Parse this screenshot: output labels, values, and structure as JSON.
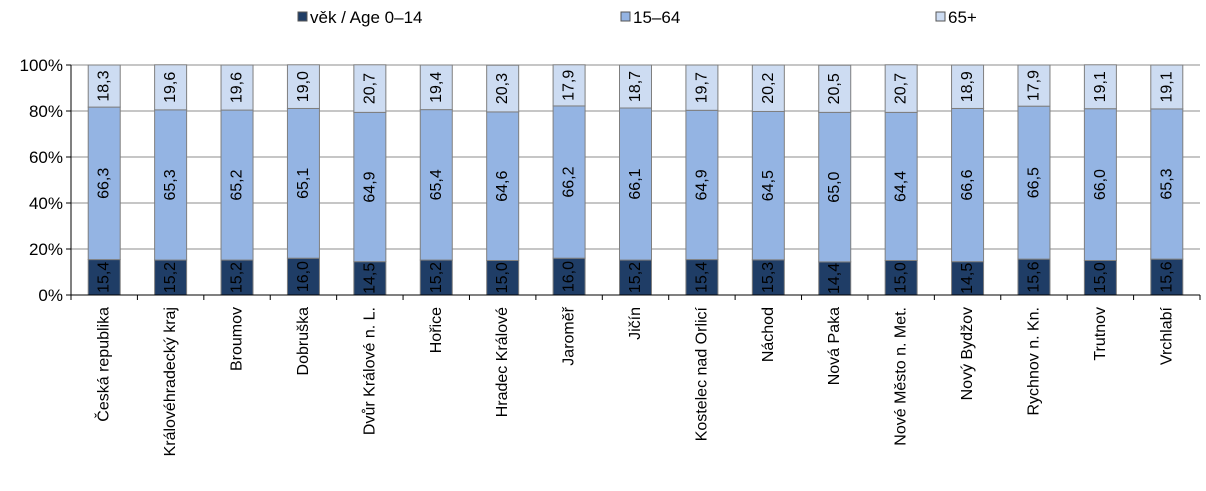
{
  "chart_data": {
    "type": "bar",
    "stacked": true,
    "categories": [
      "Česká republika",
      "Královéhradecký kraj",
      "Broumov",
      "Dobruška",
      "Dvůr Králové n. L.",
      "Hořice",
      "Hradec Králové",
      "Jaroměř",
      "Jičín",
      "Kostelec nad Orlicí",
      "Náchod",
      "Nová Paka",
      "Nové Město n. Met.",
      "Nový Bydžov",
      "Rychnov n. Kn.",
      "Trutnov",
      "Vrchlabí"
    ],
    "series": [
      {
        "name": "věk / Age 0–14",
        "color": "#1f3d66",
        "values": [
          15.4,
          15.2,
          15.2,
          16.0,
          14.5,
          15.2,
          15.0,
          16.0,
          15.2,
          15.4,
          15.3,
          14.4,
          15.0,
          14.5,
          15.6,
          15.0,
          15.6
        ]
      },
      {
        "name": "15–64",
        "color": "#94b4e3",
        "values": [
          66.3,
          65.3,
          65.2,
          65.1,
          64.9,
          65.4,
          64.6,
          66.2,
          66.1,
          64.9,
          64.5,
          65.0,
          64.4,
          66.6,
          66.5,
          66.0,
          65.3
        ]
      },
      {
        "name": "65+",
        "color": "#cddcf2",
        "values": [
          18.3,
          19.6,
          19.6,
          19.0,
          20.7,
          19.4,
          20.3,
          17.9,
          18.7,
          19.7,
          20.2,
          20.5,
          20.7,
          18.9,
          17.9,
          19.1,
          19.1
        ]
      }
    ],
    "value_labels": [
      [
        "15,4",
        "15,2",
        "15,2",
        "16,0",
        "14,5",
        "15,2",
        "15,0",
        "16,0",
        "15,2",
        "15,4",
        "15,3",
        "14,4",
        "15,0",
        "14,5",
        "15,6",
        "15,0",
        "15,6"
      ],
      [
        "66,3",
        "65,3",
        "65,2",
        "65,1",
        "64,9",
        "65,4",
        "64,6",
        "66,2",
        "66,1",
        "64,9",
        "64,5",
        "65,0",
        "64,4",
        "66,6",
        "66,5",
        "66,0",
        "65,3"
      ],
      [
        "18,3",
        "19,6",
        "19,6",
        "19,0",
        "20,7",
        "19,4",
        "20,3",
        "17,9",
        "18,7",
        "19,7",
        "20,2",
        "20,5",
        "20,7",
        "18,9",
        "17,9",
        "19,1",
        "19,1"
      ]
    ],
    "y_ticks": [
      "0%",
      "20%",
      "40%",
      "60%",
      "80%",
      "100%"
    ],
    "ylim": [
      0,
      100
    ],
    "grid": true,
    "legend_position": "top",
    "title": "",
    "xlabel": "",
    "ylabel": ""
  }
}
